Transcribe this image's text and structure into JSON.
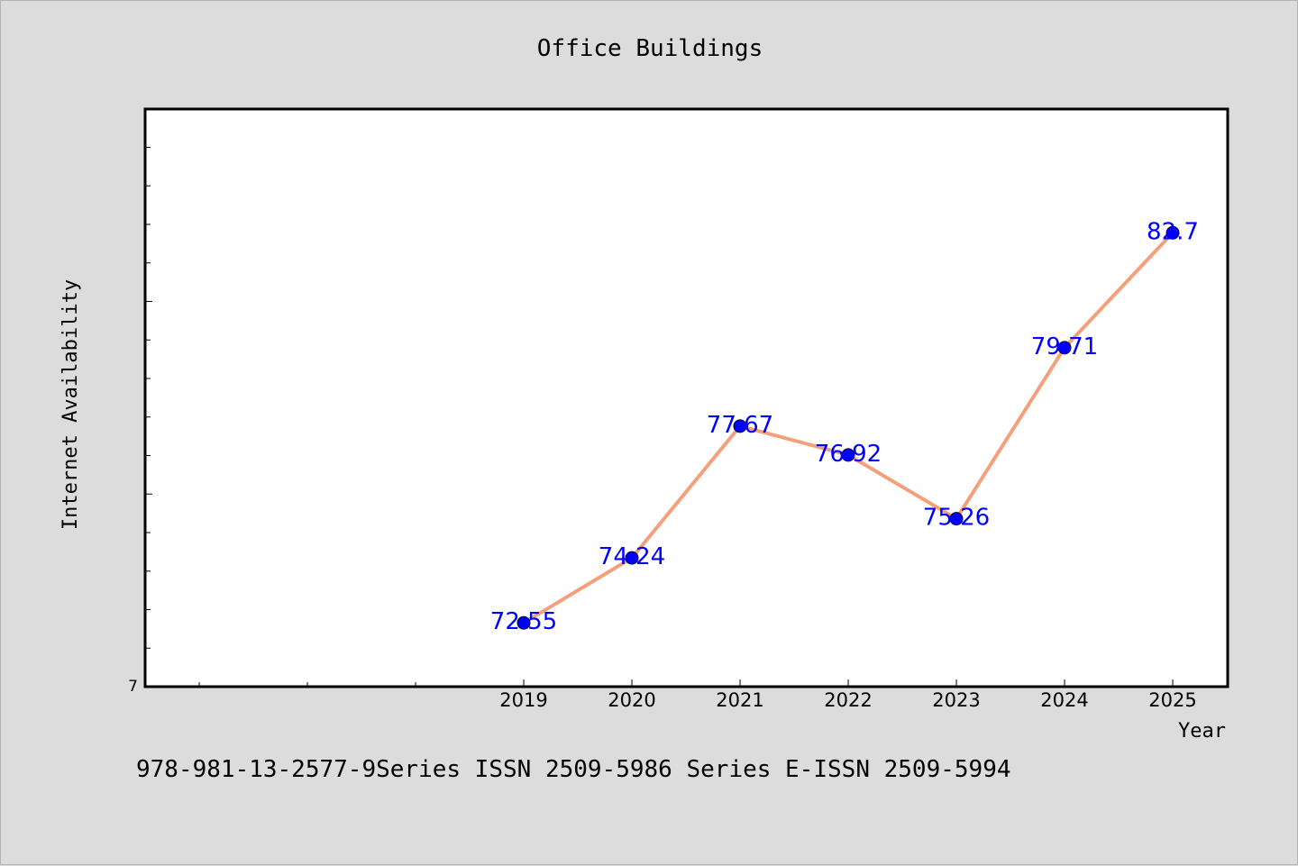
{
  "chart_data": {
    "type": "line",
    "title": "Office Buildings",
    "xlabel": "Year",
    "ylabel": "Internet Availability",
    "x": [
      "2019",
      "2020",
      "2021",
      "2022",
      "2023",
      "2024",
      "2025"
    ],
    "x_ticks_extra_unlabeled": 3,
    "series": [
      {
        "values": [
          72.55,
          74.24,
          77.67,
          76.92,
          75.26,
          79.71,
          82.7
        ]
      }
    ],
    "data_labels": [
      "72.55",
      "74.24",
      "77.67",
      "76.92",
      "75.26",
      "79.71",
      "82.7"
    ],
    "y_tick_label": "7",
    "ylim": [
      70.89,
      85.92
    ],
    "grid": false,
    "legend": "none",
    "colors": {
      "line": "#f4a07c",
      "marker": "#0000ff",
      "data_label": "#0000ff",
      "plot_bg": "#ffffff",
      "page_bg": "#dcdcdc"
    }
  },
  "footer": {
    "text": "978-981-13-2577-9Series ISSN 2509-5986 Series E-ISSN 2509-5994"
  }
}
